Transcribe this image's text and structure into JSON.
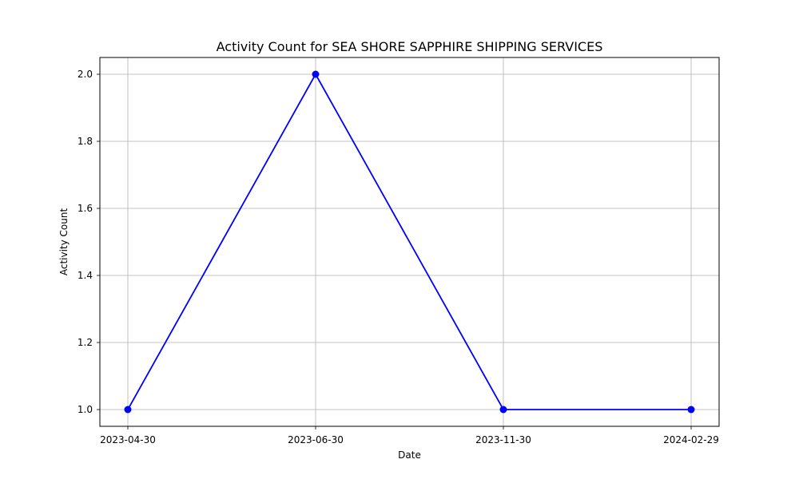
{
  "chart_data": {
    "type": "line",
    "title": "Activity Count for SEA SHORE SAPPHIRE SHIPPING SERVICES",
    "xlabel": "Date",
    "ylabel": "Activity Count",
    "categories": [
      "2023-04-30",
      "2023-06-30",
      "2023-11-30",
      "2024-02-29"
    ],
    "series": [
      {
        "values": [
          1.0,
          2.0,
          1.0,
          1.0
        ]
      }
    ],
    "ylim": [
      0.95,
      2.05
    ],
    "yticks": [
      "1.0",
      "1.2",
      "1.4",
      "1.6",
      "1.8",
      "2.0"
    ],
    "grid": true,
    "marker": "circle",
    "line_color": "#0000ff",
    "grid_color": "#b0b0b0"
  }
}
